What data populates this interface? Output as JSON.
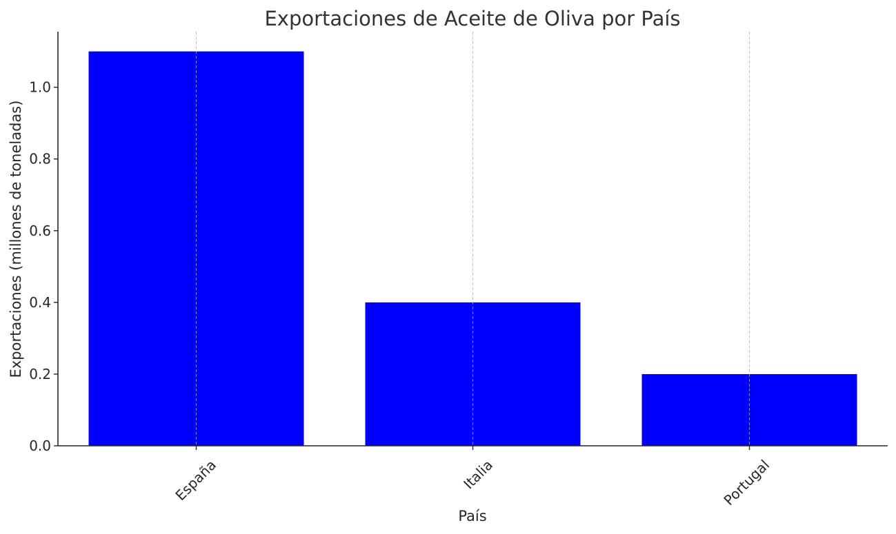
{
  "chart_data": {
    "type": "bar",
    "title": "Exportaciones de Aceite de Oliva por País",
    "xlabel": "País",
    "ylabel": "Exportaciones (millones de toneladas)",
    "categories": [
      "España",
      "Italia",
      "Portugal"
    ],
    "values": [
      1.1,
      0.4,
      0.2
    ],
    "ylim": [
      0,
      1.155
    ],
    "yticks": [
      0.0,
      0.2,
      0.4,
      0.6,
      0.8,
      1.0
    ],
    "ytick_labels": [
      "0.0",
      "0.2",
      "0.4",
      "0.6",
      "0.8",
      "1.0"
    ],
    "xtick_rotation": "45°",
    "grid": "x-axis dashed",
    "bar_color": "#0000ff",
    "legend": "none"
  }
}
